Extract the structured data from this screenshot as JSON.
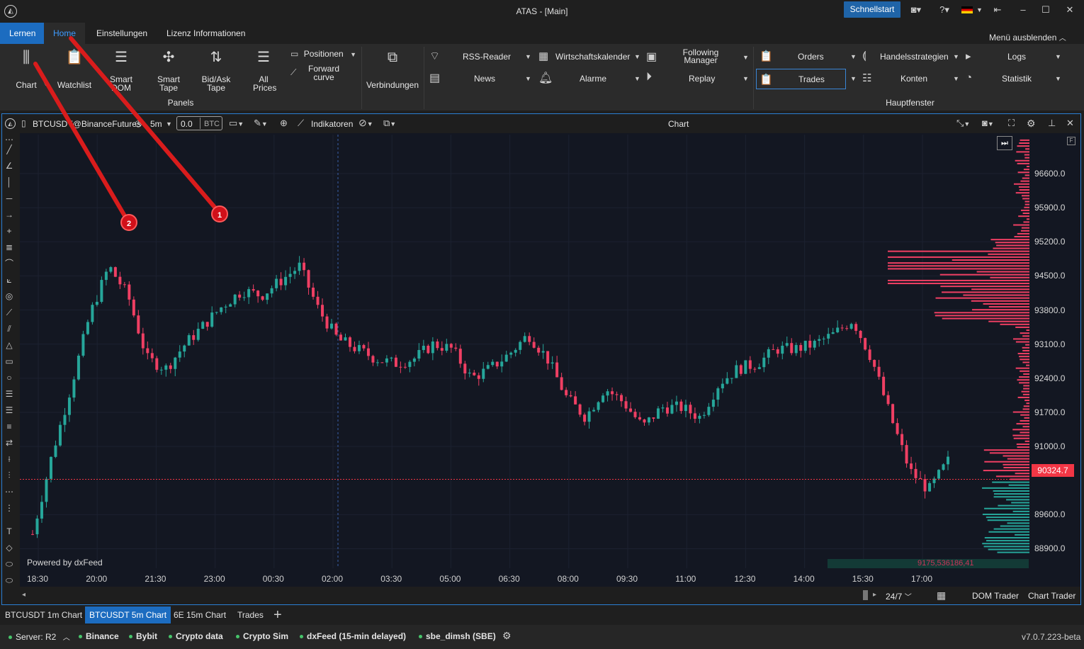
{
  "window": {
    "title": "ATAS - [Main]",
    "quickstart": "Schnellstart"
  },
  "menu": {
    "tabs": [
      "Lernen",
      "Home",
      "Einstellungen",
      "Lizenz Informationen"
    ],
    "hide_menu": "Menü ausblenden"
  },
  "ribbon": {
    "panels_group": "Panels",
    "main_group": "Hauptfenster",
    "buttons": {
      "chart": "Chart",
      "watchlist": "Watchlist",
      "smart_dom": "Smart DOM",
      "smart_tape": "Smart Tape",
      "bidask_tape": "Bid/Ask Tape",
      "all_prices": "All Prices",
      "positionen": "Positionen",
      "forward_curve": "Forward curve",
      "verbindungen": "Verbindungen",
      "rss": "RSS-Reader",
      "news": "News",
      "wirtschaft": "Wirtschaftskalender",
      "alarme": "Alarme",
      "following_manager": "Following Manager",
      "replay": "Replay",
      "orders": "Orders",
      "trades": "Trades",
      "handelsstrategien": "Handelsstrategien",
      "konten": "Konten",
      "logs": "Logs",
      "statistik": "Statistik"
    }
  },
  "chart": {
    "symbol": "BTCUSDT@BinanceFutures",
    "timeframe": "5m",
    "volume_value": "0.0",
    "volume_unit": "BTC",
    "indicators": "Indikatoren",
    "title": "Chart",
    "powered": "Powered by dxFeed",
    "current_price": "90324.7",
    "cluster_value": "9175,536186,41",
    "session": "24/7",
    "dom_trader": "DOM Trader",
    "chart_trader": "Chart Trader"
  },
  "annotations": {
    "marker1": "1",
    "marker2": "2"
  },
  "chart_data": {
    "type": "candlestick",
    "symbol": "BTCUSDT@BinanceFutures",
    "x_ticks": [
      "18:30",
      "20:00",
      "21:30",
      "23:00",
      "00:30",
      "02:00",
      "03:30",
      "05:00",
      "06:30",
      "08:00",
      "09:30",
      "11:00",
      "12:30",
      "14:00",
      "15:30",
      "17:00"
    ],
    "y_ticks": [
      "96600.0",
      "95900.0",
      "95200.0",
      "94500.0",
      "93800.0",
      "93100.0",
      "92400.0",
      "91700.0",
      "91000.0",
      "89600.0",
      "88900.0"
    ],
    "ylim": [
      88500,
      97400
    ],
    "last_price": 90324.7,
    "closes": [
      89200,
      90800,
      92200,
      93700,
      94700,
      94100,
      92800,
      92600,
      93100,
      93500,
      93900,
      94200,
      94100,
      94400,
      94700,
      93800,
      93200,
      93000,
      92800,
      92700,
      92800,
      93100,
      93000,
      92400,
      92600,
      92900,
      93300,
      92800,
      92000,
      91600,
      92200,
      91900,
      91400,
      91800,
      91800,
      91600,
      92300,
      92600,
      92700,
      93000,
      93000,
      93100,
      93300,
      93600,
      92800,
      91600,
      90500,
      90100,
      90700
    ]
  },
  "doc_tabs": [
    "BTCUSDT 1m Chart",
    "BTCUSDT 5m Chart",
    "6E 15m Chart",
    "Trades"
  ],
  "status": {
    "server": "Server: R2",
    "connections": [
      "Binance",
      "Bybit",
      "Crypto data",
      "Crypto Sim",
      "dxFeed (15-min delayed)",
      "sbe_dimsh (SBE)"
    ],
    "version": "v7.0.7.223-beta"
  }
}
